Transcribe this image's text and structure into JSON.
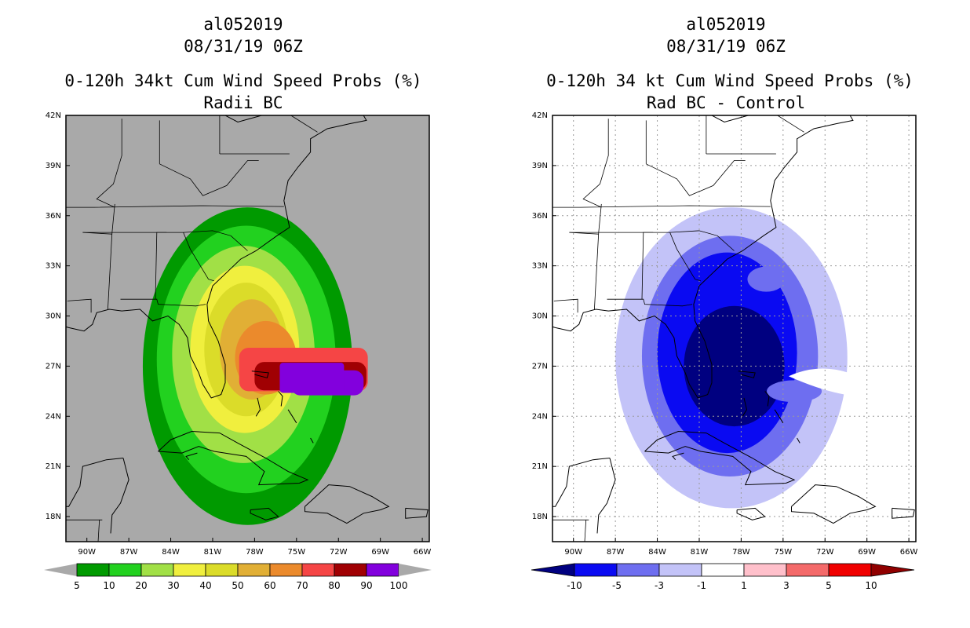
{
  "panels": [
    {
      "storm_id": "al052019",
      "datetime": "08/31/19 06Z",
      "title_line1": "0-120h 34kt Cum Wind Speed Probs (%)",
      "title_line2": "Radii BC",
      "background_color": "#a9a9a9",
      "coast_color": "#000000"
    },
    {
      "storm_id": "al052019",
      "datetime": "08/31/19 06Z",
      "title_line1": "0-120h 34 kt Cum Wind Speed Probs (%)",
      "title_line2": "Rad BC - Control",
      "background_color": "#ffffff",
      "coast_color": "#000000"
    }
  ],
  "chart_data": [
    {
      "type": "heatmap",
      "title": "0-120h 34kt Cum Wind Speed Probs (%) - Radii BC",
      "xlabel": "",
      "ylabel": "",
      "xlim": [
        -91.5,
        -65.5
      ],
      "ylim": [
        16.5,
        42
      ],
      "x_ticks": [
        "90W",
        "87W",
        "84W",
        "81W",
        "78W",
        "75W",
        "72W",
        "69W",
        "66W"
      ],
      "y_ticks": [
        "18N",
        "21N",
        "24N",
        "27N",
        "30N",
        "33N",
        "36N",
        "39N",
        "42N"
      ],
      "colorbar": {
        "labels": [
          "5",
          "10",
          "20",
          "30",
          "40",
          "50",
          "60",
          "70",
          "80",
          "90",
          "100"
        ],
        "colors": [
          "#009a00",
          "#22d11f",
          "#a1e046",
          "#f0ef3e",
          "#dbdc29",
          "#e1af35",
          "#eb8a2c",
          "#f54545",
          "#a00003",
          "#8200dd"
        ]
      },
      "contours": [
        {
          "level": 5,
          "center": [
            -78.5,
            27.0
          ],
          "rx": 7.5,
          "ry": 9.5
        },
        {
          "level": 10,
          "center": [
            -78.6,
            27.4
          ],
          "rx": 6.4,
          "ry": 8.0
        },
        {
          "level": 20,
          "center": [
            -78.8,
            27.7
          ],
          "rx": 5.1,
          "ry": 6.5
        },
        {
          "level": 30,
          "center": [
            -78.7,
            28.0
          ],
          "rx": 3.9,
          "ry": 5.0
        },
        {
          "level": 40,
          "center": [
            -78.6,
            28.0
          ],
          "rx": 3.0,
          "ry": 4.0
        },
        {
          "level": 50,
          "center": [
            -78.2,
            28.0
          ],
          "rx": 2.3,
          "ry": 3.0
        },
        {
          "level": 60,
          "center": [
            -77.2,
            27.5
          ],
          "rx": 2.2,
          "ry": 2.2
        },
        {
          "level": 70,
          "center": [
            -74.5,
            26.8
          ],
          "rx": 4.6,
          "ry": 1.3
        },
        {
          "level": 80,
          "center": [
            -74.0,
            26.4
          ],
          "rx": 4.0,
          "ry": 0.85
        },
        {
          "level": 90,
          "center": [
            -72.8,
            26.0
          ],
          "rx": 2.6,
          "ry": 0.75
        }
      ]
    },
    {
      "type": "heatmap",
      "title": "0-120h 34 kt Cum Wind Speed Probs (%) - Rad BC - Control",
      "xlabel": "",
      "ylabel": "",
      "xlim": [
        -91.5,
        -65.5
      ],
      "ylim": [
        16.5,
        42
      ],
      "x_ticks": [
        "90W",
        "87W",
        "84W",
        "81W",
        "78W",
        "75W",
        "72W",
        "69W",
        "66W"
      ],
      "y_ticks": [
        "18N",
        "21N",
        "24N",
        "27N",
        "30N",
        "33N",
        "36N",
        "39N",
        "42N"
      ],
      "colorbar": {
        "labels": [
          "-10",
          "-5",
          "-3",
          "-1",
          "1",
          "3",
          "5",
          "10"
        ],
        "colors": [
          "#000080",
          "#0a0af2",
          "#6e6ef0",
          "#c3c3f8",
          "#ffffff",
          "#ffc0cb",
          "#f46a6a",
          "#f00000",
          "#900000"
        ]
      },
      "contours": [
        {
          "level": -1,
          "center": [
            -78.7,
            27.5
          ],
          "rx": 8.3,
          "ry": 9.0
        },
        {
          "level": -3,
          "center": [
            -78.8,
            27.6
          ],
          "rx": 6.3,
          "ry": 7.2
        },
        {
          "level": -5,
          "center": [
            -79.0,
            27.8
          ],
          "rx": 5.0,
          "ry": 6.0
        },
        {
          "level": -10,
          "center": [
            -78.5,
            27.0
          ],
          "rx": 3.6,
          "ry": 3.6
        }
      ]
    }
  ]
}
